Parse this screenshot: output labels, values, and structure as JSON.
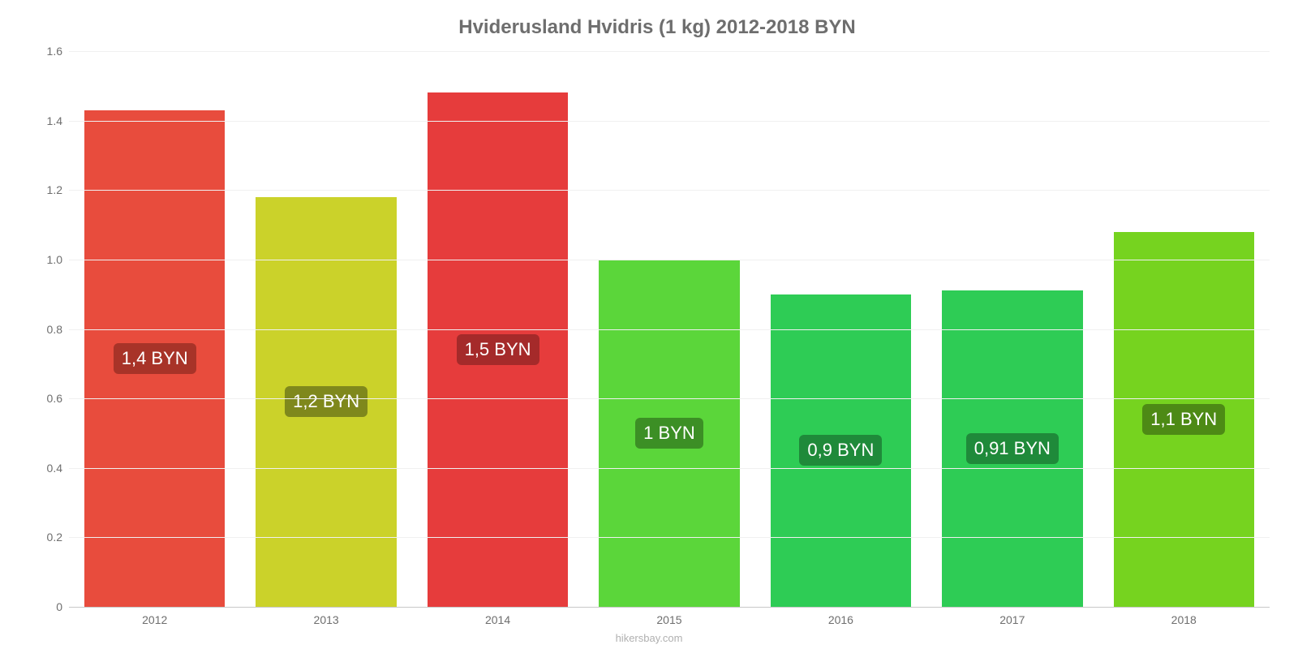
{
  "chart": {
    "type": "bar",
    "title": "Hviderusland Hvidris (1 kg) 2012-2018 BYN",
    "title_fontsize": 24,
    "title_color": "#6e6e6e",
    "background_color": "#ffffff",
    "grid_color": "#f0f0f0",
    "axis_color": "#c8c8c8",
    "label_color": "#6e6e6e",
    "label_fontsize": 14,
    "bar_label_fontsize": 22,
    "bar_label_color": "#ffffff",
    "ylim": [
      0,
      1.6
    ],
    "ytick_step": 0.2,
    "yticks": [
      "0",
      "0.2",
      "0.4",
      "0.6",
      "0.8",
      "1.0",
      "1.2",
      "1.4",
      "1.6"
    ],
    "bar_width_pct": 82,
    "categories": [
      "2012",
      "2013",
      "2014",
      "2015",
      "2016",
      "2017",
      "2018"
    ],
    "values": [
      1.43,
      1.18,
      1.48,
      1.0,
      0.9,
      0.91,
      1.08
    ],
    "bar_colors": [
      "#e84c3d",
      "#cbd22a",
      "#e63c3c",
      "#5bd63a",
      "#2ecc55",
      "#2ecc55",
      "#76d31f"
    ],
    "bar_label_bg": [
      "#a83328",
      "#7f881c",
      "#a52a2a",
      "#3c8f25",
      "#1f8a3a",
      "#1f8a3a",
      "#4d8a15"
    ],
    "value_labels": [
      "1,4 BYN",
      "1,2 BYN",
      "1,5 BYN",
      "1 BYN",
      "0,9 BYN",
      "0,91 BYN",
      "1,1 BYN"
    ],
    "attribution": "hikersbay.com",
    "attribution_color": "#b0b0b0"
  }
}
